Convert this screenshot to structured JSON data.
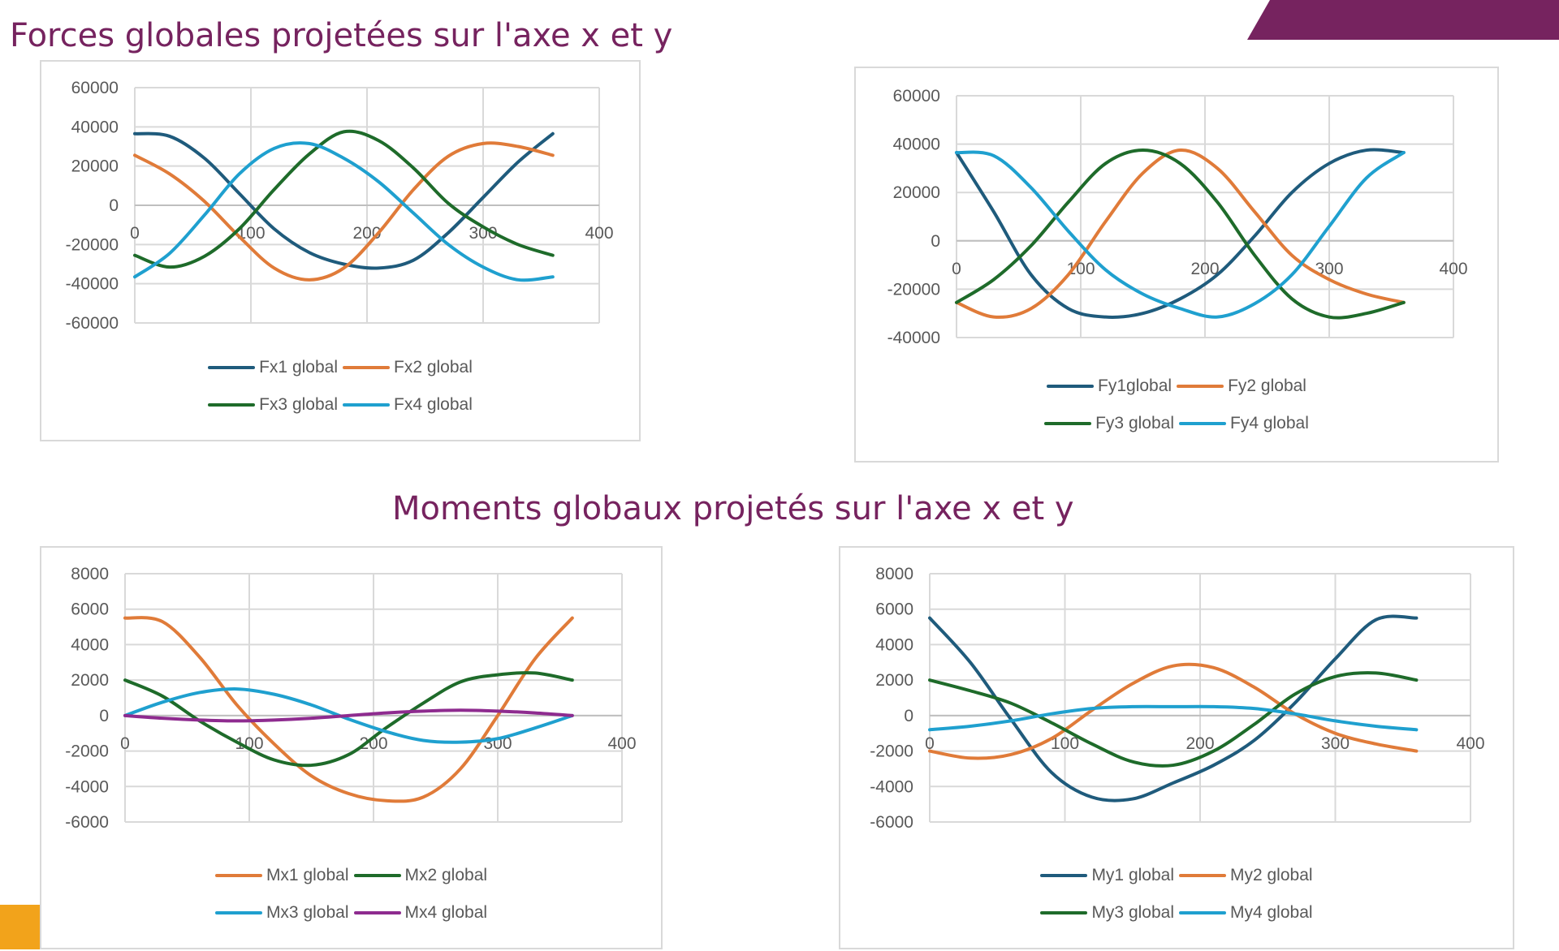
{
  "slide": {
    "title_forces": "Forces globales projetées sur l'axe x et y",
    "title_moments": "Moments globaux projetés sur l'axe x et y",
    "accent_color": "#76235f",
    "corner_color": "#f2a31b"
  },
  "chart_data": [
    {
      "type": "line",
      "title": "",
      "xlim": [
        0,
        400
      ],
      "ylim": [
        -60000,
        60000
      ],
      "x_ticks": [
        "0",
        "100",
        "200",
        "300",
        "400"
      ],
      "y_ticks": [
        "60000",
        "40000",
        "20000",
        "0",
        "-20000",
        "-40000",
        "-60000"
      ],
      "grid": true,
      "legend_position": "bottom",
      "x": [
        0,
        30,
        60,
        90,
        120,
        150,
        180,
        210,
        240,
        270,
        300,
        330,
        360
      ],
      "series": [
        {
          "name": "Fx1 global",
          "color": "#1f5b7c",
          "values": [
            36500,
            35200,
            24000,
            6000,
            -12000,
            -24000,
            -30000,
            -32000,
            -28000,
            -14000,
            4000,
            22000,
            36500
          ]
        },
        {
          "name": "Fx2 global",
          "color": "#e07b39",
          "values": [
            25500,
            16000,
            2000,
            -16000,
            -32000,
            -38000,
            -32000,
            -14000,
            8000,
            25000,
            31500,
            30000,
            25500
          ]
        },
        {
          "name": "Fx3 global",
          "color": "#1e6b2a",
          "values": [
            -25500,
            -31500,
            -26000,
            -12000,
            8000,
            26000,
            37500,
            33000,
            19000,
            1000,
            -11000,
            -20000,
            -25500
          ]
        },
        {
          "name": "Fx4 global",
          "color": "#1fa0cf",
          "values": [
            -36500,
            -24500,
            -5000,
            16000,
            29000,
            31500,
            24000,
            12000,
            -4000,
            -20000,
            -31500,
            -38000,
            -36500
          ]
        }
      ]
    },
    {
      "type": "line",
      "title": "",
      "xlim": [
        0,
        400
      ],
      "ylim": [
        -40000,
        60000
      ],
      "x_ticks": [
        "0",
        "100",
        "200",
        "300",
        "400"
      ],
      "y_ticks": [
        "60000",
        "40000",
        "20000",
        "0",
        "-20000",
        "-40000"
      ],
      "grid": true,
      "legend_position": "bottom",
      "x": [
        0,
        30,
        60,
        90,
        120,
        150,
        180,
        210,
        240,
        270,
        300,
        330,
        360
      ],
      "series": [
        {
          "name": "Fy1global",
          "color": "#1f5b7c",
          "values": [
            36500,
            12000,
            -14000,
            -28000,
            -31500,
            -30000,
            -24000,
            -14000,
            2000,
            20000,
            32000,
            37500,
            36500
          ]
        },
        {
          "name": "Fy2 global",
          "color": "#e07b39",
          "values": [
            -25500,
            -31500,
            -28000,
            -14000,
            8000,
            28000,
            37500,
            30000,
            12000,
            -6000,
            -16000,
            -22000,
            -25500
          ]
        },
        {
          "name": "Fy3 global",
          "color": "#1e6b2a",
          "values": [
            -25500,
            -16000,
            -2000,
            16000,
            32000,
            37500,
            32000,
            16000,
            -6000,
            -24000,
            -31500,
            -30000,
            -25500
          ]
        },
        {
          "name": "Fy4 global",
          "color": "#1fa0cf",
          "values": [
            36500,
            35200,
            22000,
            4000,
            -12000,
            -22000,
            -28000,
            -31500,
            -26000,
            -14000,
            6000,
            26000,
            36500
          ]
        }
      ]
    },
    {
      "type": "line",
      "title": "",
      "xlim": [
        0,
        400
      ],
      "ylim": [
        -6000,
        8000
      ],
      "x_ticks": [
        "0",
        "100",
        "200",
        "300",
        "400"
      ],
      "y_ticks": [
        "8000",
        "6000",
        "4000",
        "2000",
        "0",
        "-2000",
        "-4000",
        "-6000"
      ],
      "grid": true,
      "legend_position": "bottom",
      "x": [
        0,
        30,
        60,
        90,
        120,
        150,
        180,
        210,
        240,
        270,
        300,
        330,
        360
      ],
      "series": [
        {
          "name": "Mx1 global",
          "color": "#e07b39",
          "values": [
            5500,
            5300,
            3300,
            600,
            -1600,
            -3400,
            -4400,
            -4800,
            -4600,
            -3000,
            0,
            3200,
            5500
          ]
        },
        {
          "name": "Mx2 global",
          "color": "#1e6b2a",
          "values": [
            2000,
            1100,
            -300,
            -1500,
            -2500,
            -2800,
            -2200,
            -700,
            700,
            1900,
            2300,
            2400,
            2000
          ]
        },
        {
          "name": "Mx3 global",
          "color": "#1fa0cf",
          "values": [
            0,
            750,
            1300,
            1500,
            1200,
            600,
            -200,
            -900,
            -1400,
            -1500,
            -1300,
            -700,
            0
          ]
        },
        {
          "name": "Mx4 global",
          "color": "#8e2b8f",
          "values": [
            0,
            -150,
            -250,
            -300,
            -250,
            -150,
            0,
            150,
            250,
            300,
            250,
            150,
            0
          ]
        }
      ]
    },
    {
      "type": "line",
      "title": "",
      "xlim": [
        0,
        400
      ],
      "ylim": [
        -6000,
        8000
      ],
      "x_ticks": [
        "0",
        "100",
        "200",
        "300",
        "400"
      ],
      "y_ticks": [
        "8000",
        "6000",
        "4000",
        "2000",
        "0",
        "-2000",
        "-4000",
        "-6000"
      ],
      "grid": true,
      "legend_position": "bottom",
      "x": [
        0,
        30,
        60,
        90,
        120,
        150,
        180,
        210,
        240,
        270,
        300,
        330,
        360
      ],
      "series": [
        {
          "name": "My1 global",
          "color": "#1f5b7c",
          "values": [
            5500,
            3000,
            -200,
            -3200,
            -4600,
            -4700,
            -3800,
            -2800,
            -1400,
            700,
            3200,
            5400,
            5500
          ]
        },
        {
          "name": "My2 global",
          "color": "#e07b39",
          "values": [
            -2000,
            -2400,
            -2200,
            -1300,
            300,
            1800,
            2800,
            2700,
            1600,
            100,
            -1000,
            -1600,
            -2000
          ]
        },
        {
          "name": "My3 global",
          "color": "#1e6b2a",
          "values": [
            2000,
            1400,
            700,
            -400,
            -1600,
            -2600,
            -2800,
            -2000,
            -500,
            1200,
            2200,
            2400,
            2000
          ]
        },
        {
          "name": "My4 global",
          "color": "#1fa0cf",
          "values": [
            -800,
            -600,
            -300,
            100,
            400,
            500,
            500,
            500,
            400,
            100,
            -300,
            -600,
            -800
          ]
        }
      ]
    }
  ]
}
